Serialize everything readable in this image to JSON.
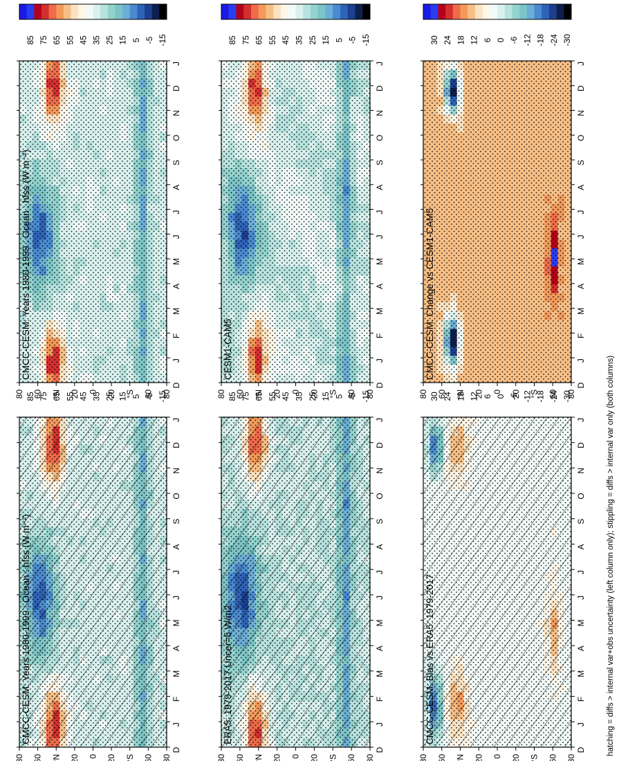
{
  "figure": {
    "footer": "hatching = diffs > internal var+obs uncertainty (left column only); stippling = diffs > internal var only (both columns)"
  },
  "chart_data": [
    {
      "type": "heatmap",
      "id": "p1",
      "title": "CMCC-CESM: Years 1980-1999 : Ocean : hfss (W m⁻²)",
      "x_ticks": [
        "D",
        "J",
        "F",
        "M",
        "A",
        "M",
        "J",
        "J",
        "A",
        "S",
        "O",
        "N",
        "D",
        "J"
      ],
      "y_ticks": [
        "80",
        "60",
        "°N",
        "20",
        "0",
        "20",
        "°S",
        "60",
        "80"
      ],
      "colorbar": [
        "85",
        "75",
        "65",
        "55",
        "45",
        "35",
        "25",
        "15",
        "5",
        "-5",
        "-15"
      ],
      "overlay": "hatching + stippling"
    },
    {
      "type": "heatmap",
      "id": "p2",
      "title": "CMCC-CESM: Years 1980-1999 : Ocean : hfss (W m⁻²)",
      "x_ticks": [
        "D",
        "J",
        "F",
        "M",
        "A",
        "M",
        "J",
        "J",
        "A",
        "S",
        "O",
        "N",
        "D",
        "J"
      ],
      "y_ticks": [
        "80",
        "60",
        "°N",
        "20",
        "0",
        "20",
        "°S",
        "60",
        "80"
      ],
      "colorbar": [
        "85",
        "75",
        "65",
        "55",
        "45",
        "35",
        "25",
        "15",
        "5",
        "-5",
        "-15"
      ],
      "overlay": "stippling"
    },
    {
      "type": "heatmap",
      "id": "p3",
      "title": "ERA5: 1979-2017 Uncer=5 W/m2",
      "x_ticks": [
        "D",
        "J",
        "F",
        "M",
        "A",
        "M",
        "J",
        "J",
        "A",
        "S",
        "O",
        "N",
        "D",
        "J"
      ],
      "y_ticks": [
        "80",
        "60",
        "°N",
        "20",
        "0",
        "20",
        "°S",
        "60",
        "80"
      ],
      "colorbar": [
        "85",
        "75",
        "65",
        "55",
        "45",
        "35",
        "25",
        "15",
        "5",
        "-5",
        "-15"
      ],
      "overlay": "hatching + stippling"
    },
    {
      "type": "heatmap",
      "id": "p4",
      "title": "CESM1-CAM5",
      "x_ticks": [
        "D",
        "J",
        "F",
        "M",
        "A",
        "M",
        "J",
        "J",
        "A",
        "S",
        "O",
        "N",
        "D",
        "J"
      ],
      "y_ticks": [
        "80",
        "60",
        "°N",
        "20",
        "0",
        "20",
        "°S",
        "60",
        "80"
      ],
      "colorbar": [
        "85",
        "75",
        "65",
        "55",
        "45",
        "35",
        "25",
        "15",
        "5",
        "-5",
        "-15"
      ],
      "overlay": "stippling"
    },
    {
      "type": "heatmap",
      "id": "p5",
      "title": "CMCC-CESM: Bias vs ERA5: 1979-2017",
      "x_ticks": [
        "D",
        "J",
        "F",
        "M",
        "A",
        "M",
        "J",
        "J",
        "A",
        "S",
        "O",
        "N",
        "D",
        "J"
      ],
      "y_ticks": [
        "80",
        "60",
        "°N",
        "20",
        "0",
        "20",
        "°S",
        "60",
        "80"
      ],
      "colorbar": [
        "30",
        "24",
        "18",
        "12",
        "6",
        "0",
        "-6",
        "-12",
        "-18",
        "-24",
        "-30"
      ],
      "overlay": "hatching + stippling"
    },
    {
      "type": "heatmap",
      "id": "p6",
      "title": "CMCC-CESM: Change vs CESM1-CAM5",
      "x_ticks": [
        "D",
        "J",
        "F",
        "M",
        "A",
        "M",
        "J",
        "J",
        "A",
        "S",
        "O",
        "N",
        "D",
        "J"
      ],
      "y_ticks": [
        "80",
        "60",
        "°N",
        "20",
        "0",
        "20",
        "°S",
        "60",
        "80"
      ],
      "colorbar": [
        "30",
        "24",
        "18",
        "12",
        "6",
        "0",
        "-6",
        "-12",
        "-18",
        "-24",
        "-30"
      ],
      "overlay": "stippling"
    }
  ],
  "palette": {
    "abs": [
      "#1a1ae6",
      "#2a3df0",
      "#b3001b",
      "#d42f2f",
      "#ef6b4a",
      "#f39a5b",
      "#f7bf86",
      "#fbe3c2",
      "#fff6e8",
      "#f2fbf9",
      "#d8f1ee",
      "#b7e3df",
      "#93d3ce",
      "#7cc4c7",
      "#6baed6",
      "#4a8ad0",
      "#2e63b8",
      "#1d3f8f",
      "#0f1f4d",
      "#000000"
    ],
    "diff": [
      "#1a1ae6",
      "#2a3df0",
      "#b3001b",
      "#d42f2f",
      "#ef6b4a",
      "#f39a5b",
      "#f7bf86",
      "#fbe3c2",
      "#fff6e8",
      "#f2fbf9",
      "#d8f1ee",
      "#b7e3df",
      "#93d3ce",
      "#7cc4c7",
      "#6baed6",
      "#4a8ad0",
      "#2e63b8",
      "#1d3f8f",
      "#0f1f4d",
      "#000000"
    ],
    "bg_abs": "#d8f1ee",
    "bg_diff": "#f6b98a"
  }
}
